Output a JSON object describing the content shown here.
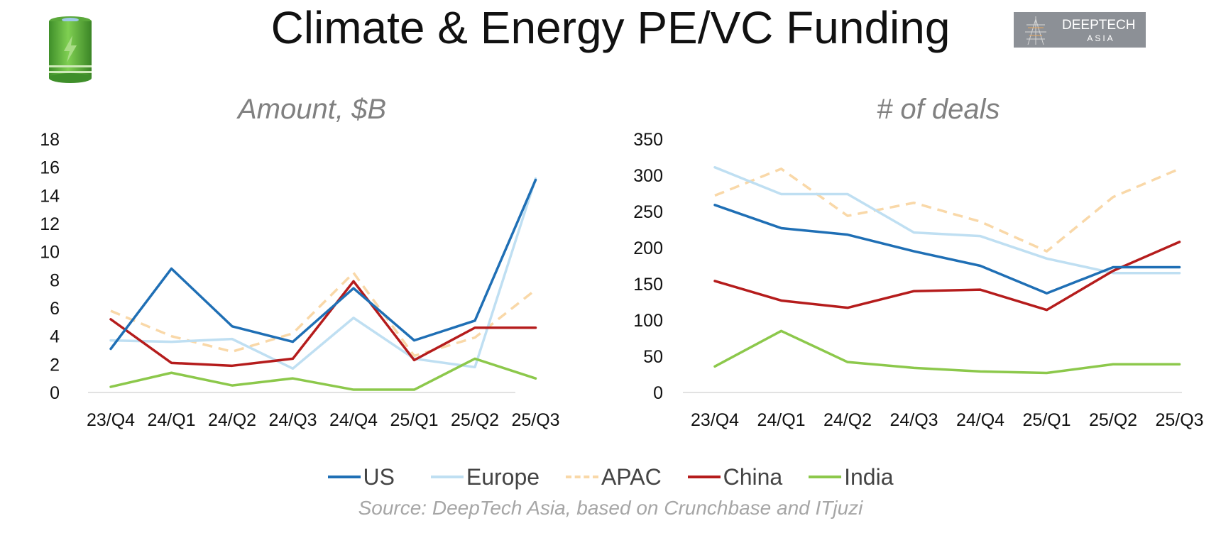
{
  "header": {
    "title": "Climate & Energy PE/VC Funding",
    "battery_icon": "battery-icon",
    "logo": {
      "line1": "DEEPTECH",
      "line2": "ASIA"
    }
  },
  "colors": {
    "US": "#1f6fb5",
    "Europe": "#bfdff2",
    "APAC": "#f9d8a8",
    "China": "#b51c1c",
    "India": "#8cc84b"
  },
  "chart_data": [
    {
      "type": "line",
      "title": "Amount, $B",
      "categories": [
        "23/Q4",
        "24/Q1",
        "24/Q2",
        "24/Q3",
        "24/Q4",
        "25/Q1",
        "25/Q2",
        "25/Q3"
      ],
      "ylim": [
        0,
        18
      ],
      "yticks": [
        0,
        2,
        4,
        6,
        8,
        10,
        12,
        14,
        16,
        18
      ],
      "series": [
        {
          "name": "US",
          "values": [
            3.1,
            8.8,
            4.7,
            3.6,
            7.4,
            3.7,
            5.1,
            15.1
          ]
        },
        {
          "name": "Europe",
          "values": [
            3.7,
            3.6,
            3.8,
            1.7,
            5.3,
            2.4,
            1.8,
            15.2
          ]
        },
        {
          "name": "APAC",
          "values": [
            5.8,
            4.0,
            2.9,
            4.2,
            8.5,
            2.6,
            3.9,
            7.3
          ]
        },
        {
          "name": "China",
          "values": [
            5.2,
            2.1,
            1.9,
            2.4,
            7.9,
            2.3,
            4.6,
            4.6
          ]
        },
        {
          "name": "India",
          "values": [
            0.4,
            1.4,
            0.5,
            1.0,
            0.2,
            0.2,
            2.4,
            1.0
          ]
        }
      ]
    },
    {
      "type": "line",
      "title": "# of deals",
      "categories": [
        "23/Q4",
        "24/Q1",
        "24/Q2",
        "24/Q3",
        "24/Q4",
        "25/Q1",
        "25/Q2",
        "25/Q3"
      ],
      "ylim": [
        0,
        350
      ],
      "yticks": [
        0,
        50,
        100,
        150,
        200,
        250,
        300,
        350
      ],
      "series": [
        {
          "name": "US",
          "values": [
            259,
            227,
            218,
            195,
            175,
            137,
            173,
            173
          ]
        },
        {
          "name": "Europe",
          "values": [
            311,
            274,
            274,
            221,
            216,
            185,
            165,
            165
          ]
        },
        {
          "name": "APAC",
          "values": [
            272,
            309,
            244,
            262,
            236,
            195,
            270,
            309
          ]
        },
        {
          "name": "China",
          "values": [
            154,
            127,
            117,
            140,
            142,
            114,
            168,
            208
          ]
        },
        {
          "name": "India",
          "values": [
            36,
            85,
            42,
            34,
            29,
            27,
            39,
            39
          ]
        }
      ]
    }
  ],
  "legend": [
    "US",
    "Europe",
    "APAC",
    "China",
    "India"
  ],
  "source": "Source: DeepTech Asia, based on Crunchbase and ITjuzi"
}
